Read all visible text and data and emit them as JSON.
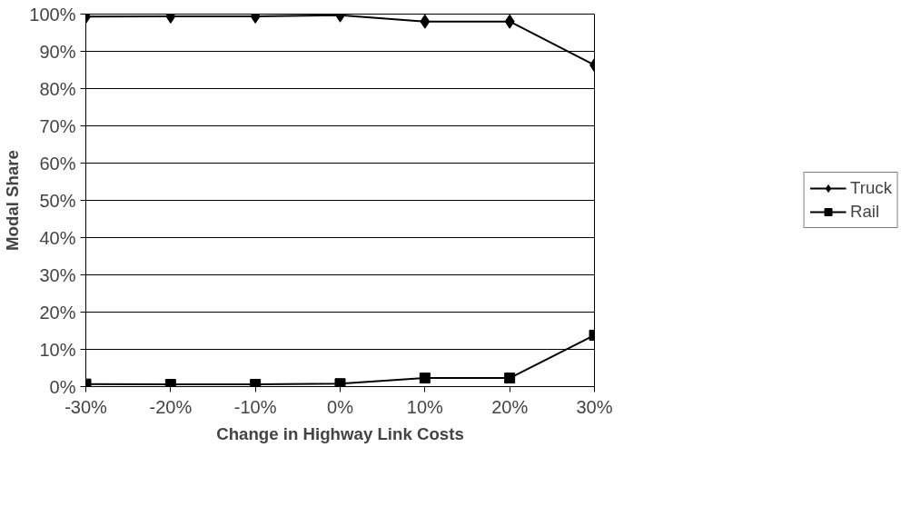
{
  "chart_data": {
    "type": "line",
    "xlabel": "Change in Highway Link Costs",
    "ylabel": "Modal Share",
    "categories": [
      "-30%",
      "-20%",
      "-10%",
      "0%",
      "10%",
      "20%",
      "30%"
    ],
    "series": [
      {
        "name": "Truck",
        "color": "#000000",
        "marker": "diamond",
        "values": [
          99.3,
          99.4,
          99.4,
          99.7,
          98.0,
          98.0,
          86.3
        ]
      },
      {
        "name": "Rail",
        "color": "#000000",
        "marker": "square",
        "values": [
          0.7,
          0.6,
          0.6,
          0.8,
          2.3,
          2.3,
          13.8
        ]
      }
    ],
    "ylim": [
      0,
      100
    ],
    "yticks": [
      {
        "value": 0,
        "label": "0%"
      },
      {
        "value": 10,
        "label": "10%"
      },
      {
        "value": 20,
        "label": "20%"
      },
      {
        "value": 30,
        "label": "30%"
      },
      {
        "value": 40,
        "label": "40%"
      },
      {
        "value": 50,
        "label": "50%"
      },
      {
        "value": 60,
        "label": "60%"
      },
      {
        "value": 70,
        "label": "70%"
      },
      {
        "value": 80,
        "label": "80%"
      },
      {
        "value": 90,
        "label": "90%"
      },
      {
        "value": 100,
        "label": "100%"
      }
    ],
    "grid": "y",
    "legend": "right",
    "line_style": "solid"
  }
}
